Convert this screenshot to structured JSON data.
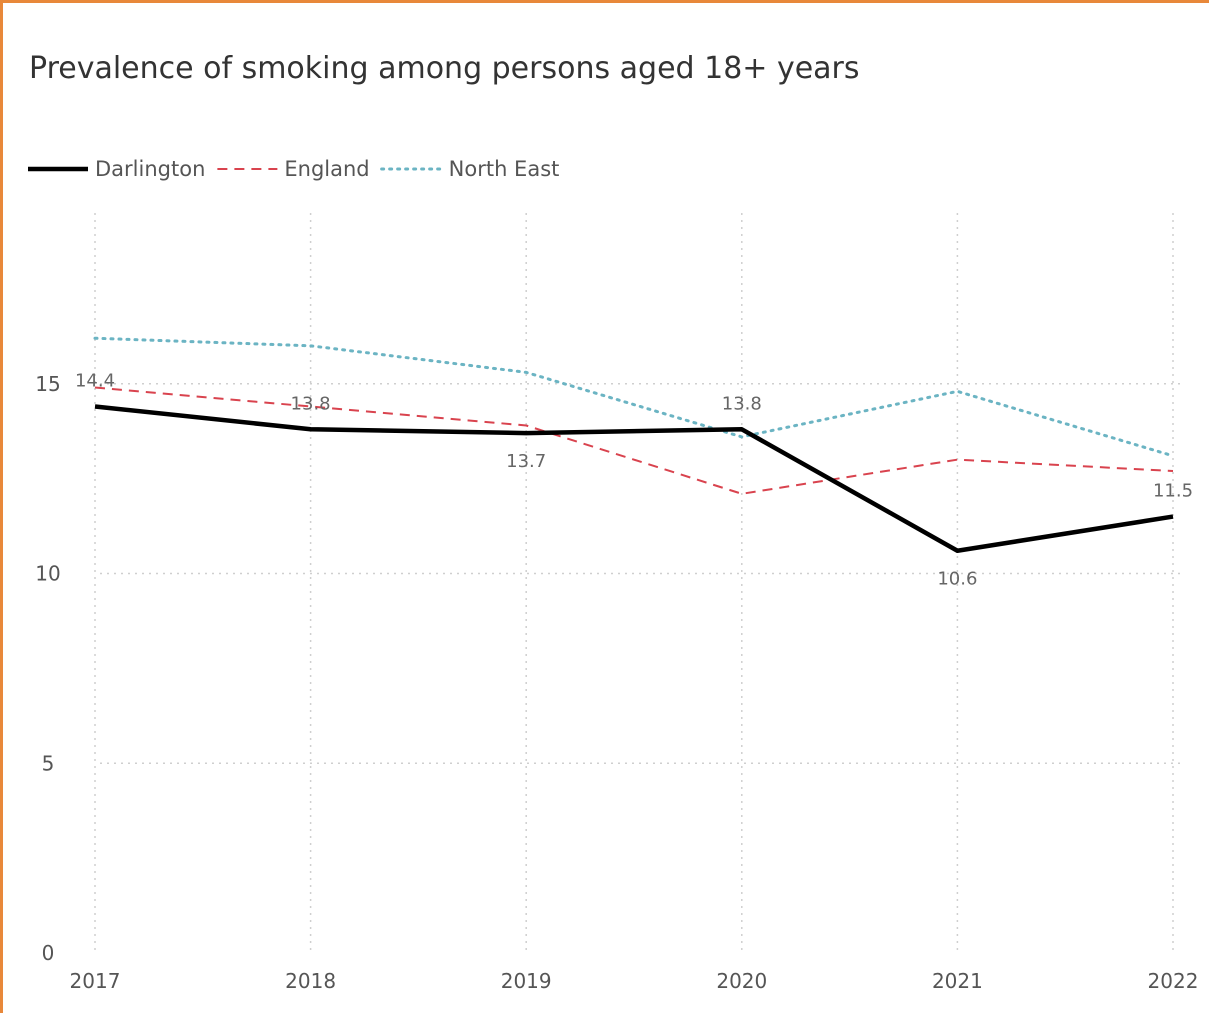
{
  "colors": {
    "border": "#E8883A",
    "darlington": "#000000",
    "england": "#D9434E",
    "north_east": "#6BB4C3",
    "grid": "#CFCFCF"
  },
  "chart_data": {
    "type": "line",
    "title": "Prevalence of smoking among persons aged 18+ years",
    "xlabel": "",
    "ylabel": "",
    "categories": [
      "2017",
      "2018",
      "2019",
      "2020",
      "2021",
      "2022"
    ],
    "ylim": [
      0,
      20
    ],
    "yticks": [
      0,
      5,
      10,
      15
    ],
    "grid": true,
    "legend_position": "top-left",
    "series": [
      {
        "name": "Darlington",
        "style": "solid",
        "values": [
          14.4,
          13.8,
          13.7,
          13.8,
          10.6,
          11.5
        ],
        "labels": [
          "14.4",
          "13.8",
          "13.7",
          "13.8",
          "10.6",
          "11.5"
        ]
      },
      {
        "name": "England",
        "style": "dashed",
        "values": [
          14.9,
          14.4,
          13.9,
          12.1,
          13.0,
          12.7
        ]
      },
      {
        "name": "North East",
        "style": "dotted",
        "values": [
          16.2,
          16.0,
          15.3,
          13.6,
          14.8,
          13.1
        ]
      }
    ]
  }
}
